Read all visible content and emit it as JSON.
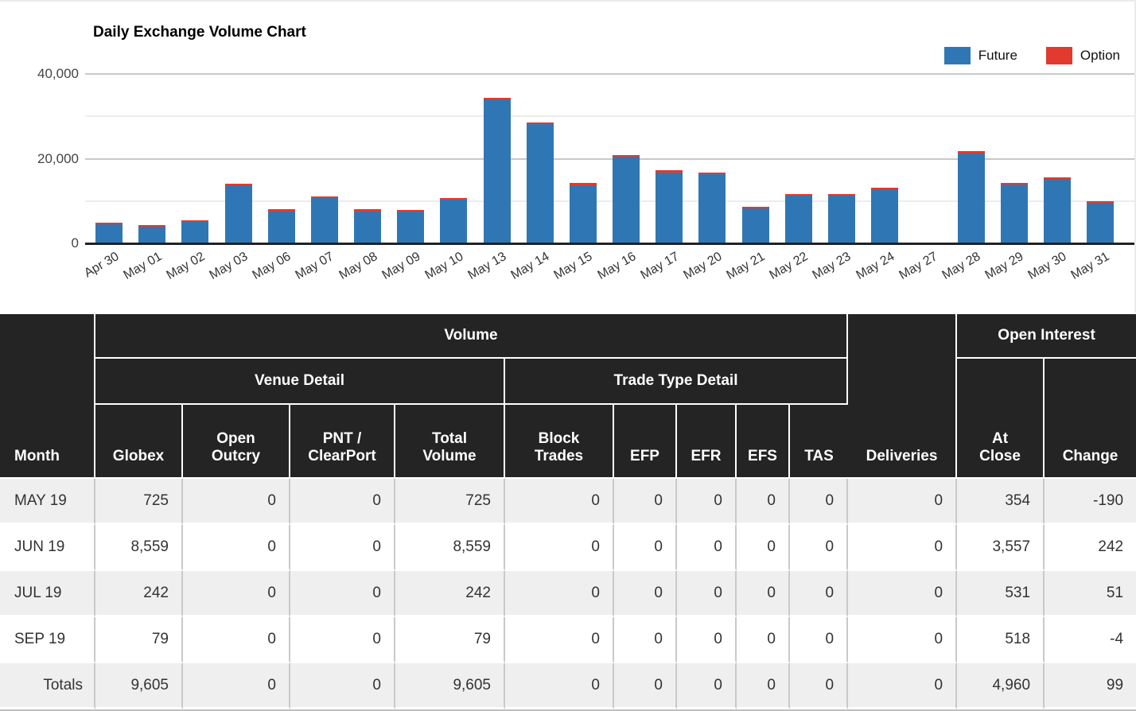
{
  "chart": {
    "title": "Daily Exchange Volume Chart",
    "legend": [
      {
        "label": "Future",
        "color": "#2f77b4"
      },
      {
        "label": "Option",
        "color": "#e23a2e"
      }
    ]
  },
  "chart_data": {
    "type": "bar",
    "stacked": true,
    "title": "Daily Exchange Volume Chart",
    "categories": [
      "Apr 30",
      "May 01",
      "May 02",
      "May 03",
      "May 06",
      "May 07",
      "May 08",
      "May 09",
      "May 10",
      "May 13",
      "May 14",
      "May 15",
      "May 16",
      "May 17",
      "May 20",
      "May 21",
      "May 22",
      "May 23",
      "May 24",
      "May 27",
      "May 28",
      "May 29",
      "May 30",
      "May 31"
    ],
    "series": [
      {
        "name": "Future",
        "color": "#2f77b4",
        "values": [
          4500,
          3900,
          5000,
          13700,
          7600,
          10700,
          7600,
          7500,
          10400,
          33900,
          28200,
          13800,
          20500,
          16800,
          16300,
          8200,
          11200,
          11300,
          12700,
          0,
          21300,
          13900,
          15200,
          9600
        ]
      },
      {
        "name": "Option",
        "color": "#e23a2e",
        "values": [
          400,
          400,
          400,
          400,
          400,
          400,
          400,
          400,
          400,
          500,
          400,
          400,
          400,
          400,
          400,
          400,
          400,
          400,
          400,
          0,
          400,
          400,
          400,
          400
        ]
      }
    ],
    "xlabel": "",
    "ylabel": "",
    "ylim": [
      0,
      45000
    ],
    "yticks": [
      {
        "value": 0,
        "label": "0"
      },
      {
        "value": 20000,
        "label": "20,000"
      },
      {
        "value": 40000,
        "label": "40,000"
      }
    ],
    "gridlines": [
      10000,
      20000,
      30000,
      40000
    ],
    "grid": true,
    "legend_position": "top-right"
  },
  "table": {
    "header": {
      "month": "Month",
      "volume": "Volume",
      "venue_detail": "Venue Detail",
      "trade_type_detail": "Trade Type Detail",
      "deliveries": "Deliveries",
      "open_interest": "Open Interest",
      "at_close": "At\nClose",
      "change": "Change",
      "columns": [
        "Globex",
        "Open\nOutcry",
        "PNT /\nClearPort",
        "Total\nVolume",
        "Block\nTrades",
        "EFP",
        "EFR",
        "EFS",
        "TAS"
      ]
    },
    "rows": [
      {
        "month": "MAY 19",
        "cells": [
          "725",
          "0",
          "0",
          "725",
          "0",
          "0",
          "0",
          "0",
          "0",
          "0",
          "354",
          "-190"
        ]
      },
      {
        "month": "JUN 19",
        "cells": [
          "8,559",
          "0",
          "0",
          "8,559",
          "0",
          "0",
          "0",
          "0",
          "0",
          "0",
          "3,557",
          "242"
        ]
      },
      {
        "month": "JUL 19",
        "cells": [
          "242",
          "0",
          "0",
          "242",
          "0",
          "0",
          "0",
          "0",
          "0",
          "0",
          "531",
          "51"
        ]
      },
      {
        "month": "SEP 19",
        "cells": [
          "79",
          "0",
          "0",
          "79",
          "0",
          "0",
          "0",
          "0",
          "0",
          "0",
          "518",
          "-4"
        ]
      }
    ],
    "totals": {
      "label": "Totals",
      "cells": [
        "9,605",
        "0",
        "0",
        "9,605",
        "0",
        "0",
        "0",
        "0",
        "0",
        "0",
        "4,960",
        "99"
      ]
    }
  }
}
